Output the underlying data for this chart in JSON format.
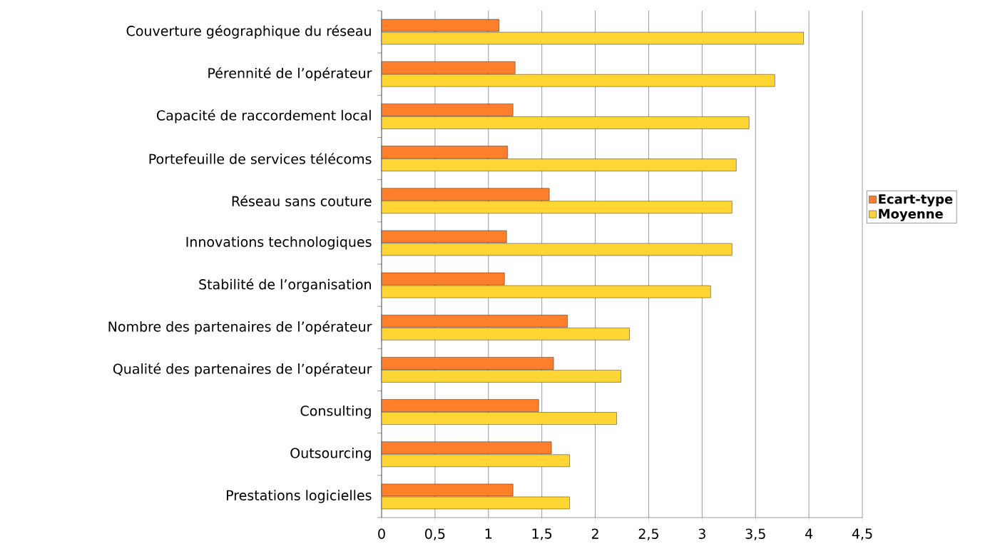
{
  "chart_data": {
    "type": "bar",
    "orientation": "horizontal",
    "categories": [
      "Couverture géographique du réseau",
      "Pérennité de l’opérateur",
      "Capacité de raccordement local",
      "Portefeuille de services télécoms",
      "Réseau sans couture",
      "Innovations technologiques",
      "Stabilité de l’organisation",
      "Nombre des partenaires de l’opérateur",
      "Qualité des partenaires de l’opérateur",
      "Consulting",
      "Outsourcing",
      "Prestations logicielles"
    ],
    "series": [
      {
        "name": "Ecart-type",
        "color": "#ff7f2a",
        "values": [
          1.1,
          1.25,
          1.23,
          1.18,
          1.57,
          1.17,
          1.15,
          1.74,
          1.61,
          1.47,
          1.59,
          1.23
        ]
      },
      {
        "name": "Moyenne",
        "color": "#ffd633",
        "values": [
          3.95,
          3.68,
          3.44,
          3.32,
          3.28,
          3.28,
          3.08,
          2.32,
          2.24,
          2.2,
          1.76,
          1.76
        ]
      }
    ],
    "xlim": [
      0,
      4.5
    ],
    "xticks": [
      0,
      {
        "value": 0.5,
        "label": "0,5"
      },
      1,
      {
        "value": 1.5,
        "label": "1,5"
      },
      2,
      {
        "value": 2.5,
        "label": "2,5"
      },
      3,
      {
        "value": 3.5,
        "label": "3,5"
      },
      4,
      {
        "value": 4.5,
        "label": "4,5"
      }
    ],
    "grid": "x",
    "legend": "right"
  }
}
